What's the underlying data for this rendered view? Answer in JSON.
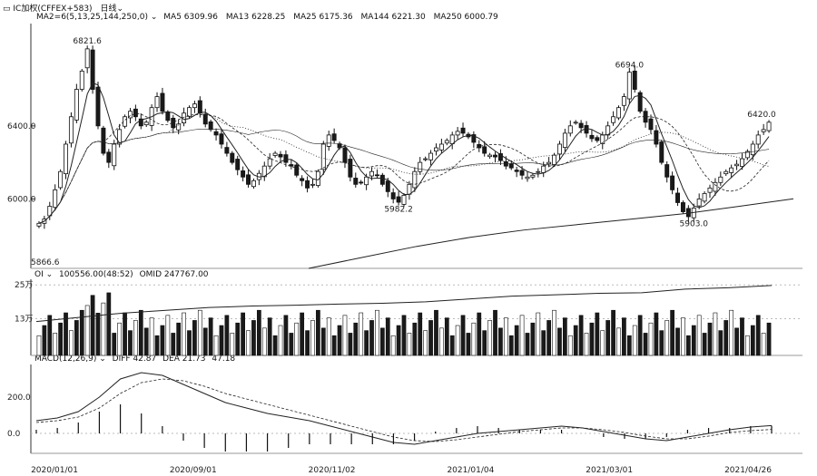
{
  "header": {
    "title": "IC加权(CFFEX+583)",
    "period": "日线",
    "ma_indicator": "MA2=6(5,13,25,144,250,0)",
    "ma_values": [
      "MA5 6309.96",
      "MA13 6228.25",
      "MA25 6175.36",
      "MA144 6221.30",
      "MA250 6000.79"
    ]
  },
  "volume_panel": {
    "label": "OI",
    "values": [
      "100556.00(48:52)",
      "OMID 247767.00"
    ]
  },
  "macd_panel": {
    "label": "MACD(12,26,9)",
    "values": [
      "DIFF 42.87",
      "DEA 21.73",
      "47.18"
    ]
  },
  "price_annotations": [
    "6821.6",
    "6694.0",
    "6420.0",
    "5982.2",
    "5903.0",
    "5866.6"
  ],
  "price_ticks": [
    "6400.0",
    "6000.0"
  ],
  "volume_ticks": [
    "25万",
    "13万"
  ],
  "macd_ticks": [
    "200.0",
    "0.0"
  ],
  "date_ticks": [
    "2020/01/01",
    "2020/09/01",
    "2020/11/02",
    "2021/01/04",
    "2021/03/01",
    "2021/04/26"
  ],
  "colors": {
    "up": "#ffffff",
    "down": "#1a1a1a",
    "line": "#222222",
    "grid": "#bbbbbb"
  },
  "chart_data": {
    "type": "candlestick",
    "price_range": [
      5620,
      6960
    ],
    "volume_range": [
      0,
      270000
    ],
    "macd_range": [
      -110,
      380
    ],
    "close_path": [
      5866.6,
      5890,
      5960,
      6050,
      6150,
      6300,
      6450,
      6600,
      6700,
      6821.6,
      6600,
      6400,
      6250,
      6200,
      6300,
      6380,
      6450,
      6480,
      6450,
      6400,
      6420,
      6500,
      6560,
      6480,
      6430,
      6390,
      6410,
      6470,
      6500,
      6520,
      6470,
      6410,
      6380,
      6350,
      6300,
      6250,
      6200,
      6160,
      6120,
      6080,
      6100,
      6140,
      6180,
      6220,
      6250,
      6230,
      6200,
      6180,
      6130,
      6100,
      6060,
      6080,
      6150,
      6300,
      6350,
      6320,
      6280,
      6200,
      6120,
      6080,
      6090,
      6120,
      6150,
      6130,
      6080,
      6040,
      6000,
      5982.2,
      6020,
      6080,
      6150,
      6200,
      6220,
      6250,
      6280,
      6300,
      6320,
      6350,
      6370,
      6360,
      6340,
      6310,
      6280,
      6250,
      6240,
      6230,
      6210,
      6180,
      6170,
      6150,
      6130,
      6120,
      6130,
      6150,
      6180,
      6200,
      6240,
      6300,
      6360,
      6400,
      6420,
      6390,
      6360,
      6330,
      6320,
      6350,
      6400,
      6450,
      6500,
      6560,
      6694.0,
      6600,
      6480,
      6420,
      6380,
      6300,
      6200,
      6120,
      6050,
      5980,
      5930,
      5903.0,
      5950,
      6000,
      6030,
      6060,
      6090,
      6120,
      6150,
      6170,
      6190,
      6220,
      6260,
      6300,
      6350,
      6380,
      6420.0
    ],
    "ma250_path": [
      5620,
      5680,
      5740,
      5790,
      5830,
      5860,
      5890,
      5920,
      5960,
      6000.79
    ],
    "oi_path": [
      120000,
      135000,
      150000,
      160000,
      170000,
      175000,
      178000,
      182000,
      185000,
      190000,
      200000,
      210000,
      215000,
      220000,
      222000,
      235000,
      240000,
      247767
    ],
    "diff_path": [
      70,
      85,
      120,
      200,
      300,
      335,
      320,
      270,
      220,
      170,
      140,
      110,
      90,
      70,
      40,
      10,
      -20,
      -50,
      -60,
      -40,
      -20,
      0,
      10,
      20,
      30,
      40,
      30,
      10,
      -10,
      -30,
      -40,
      -20,
      0,
      20,
      35,
      42.87
    ],
    "dea_path": [
      60,
      70,
      90,
      140,
      220,
      280,
      300,
      290,
      260,
      220,
      190,
      160,
      130,
      100,
      70,
      40,
      10,
      -20,
      -40,
      -45,
      -35,
      -20,
      -5,
      10,
      20,
      30,
      30,
      20,
      5,
      -15,
      -30,
      -30,
      -15,
      5,
      15,
      21.73
    ]
  }
}
